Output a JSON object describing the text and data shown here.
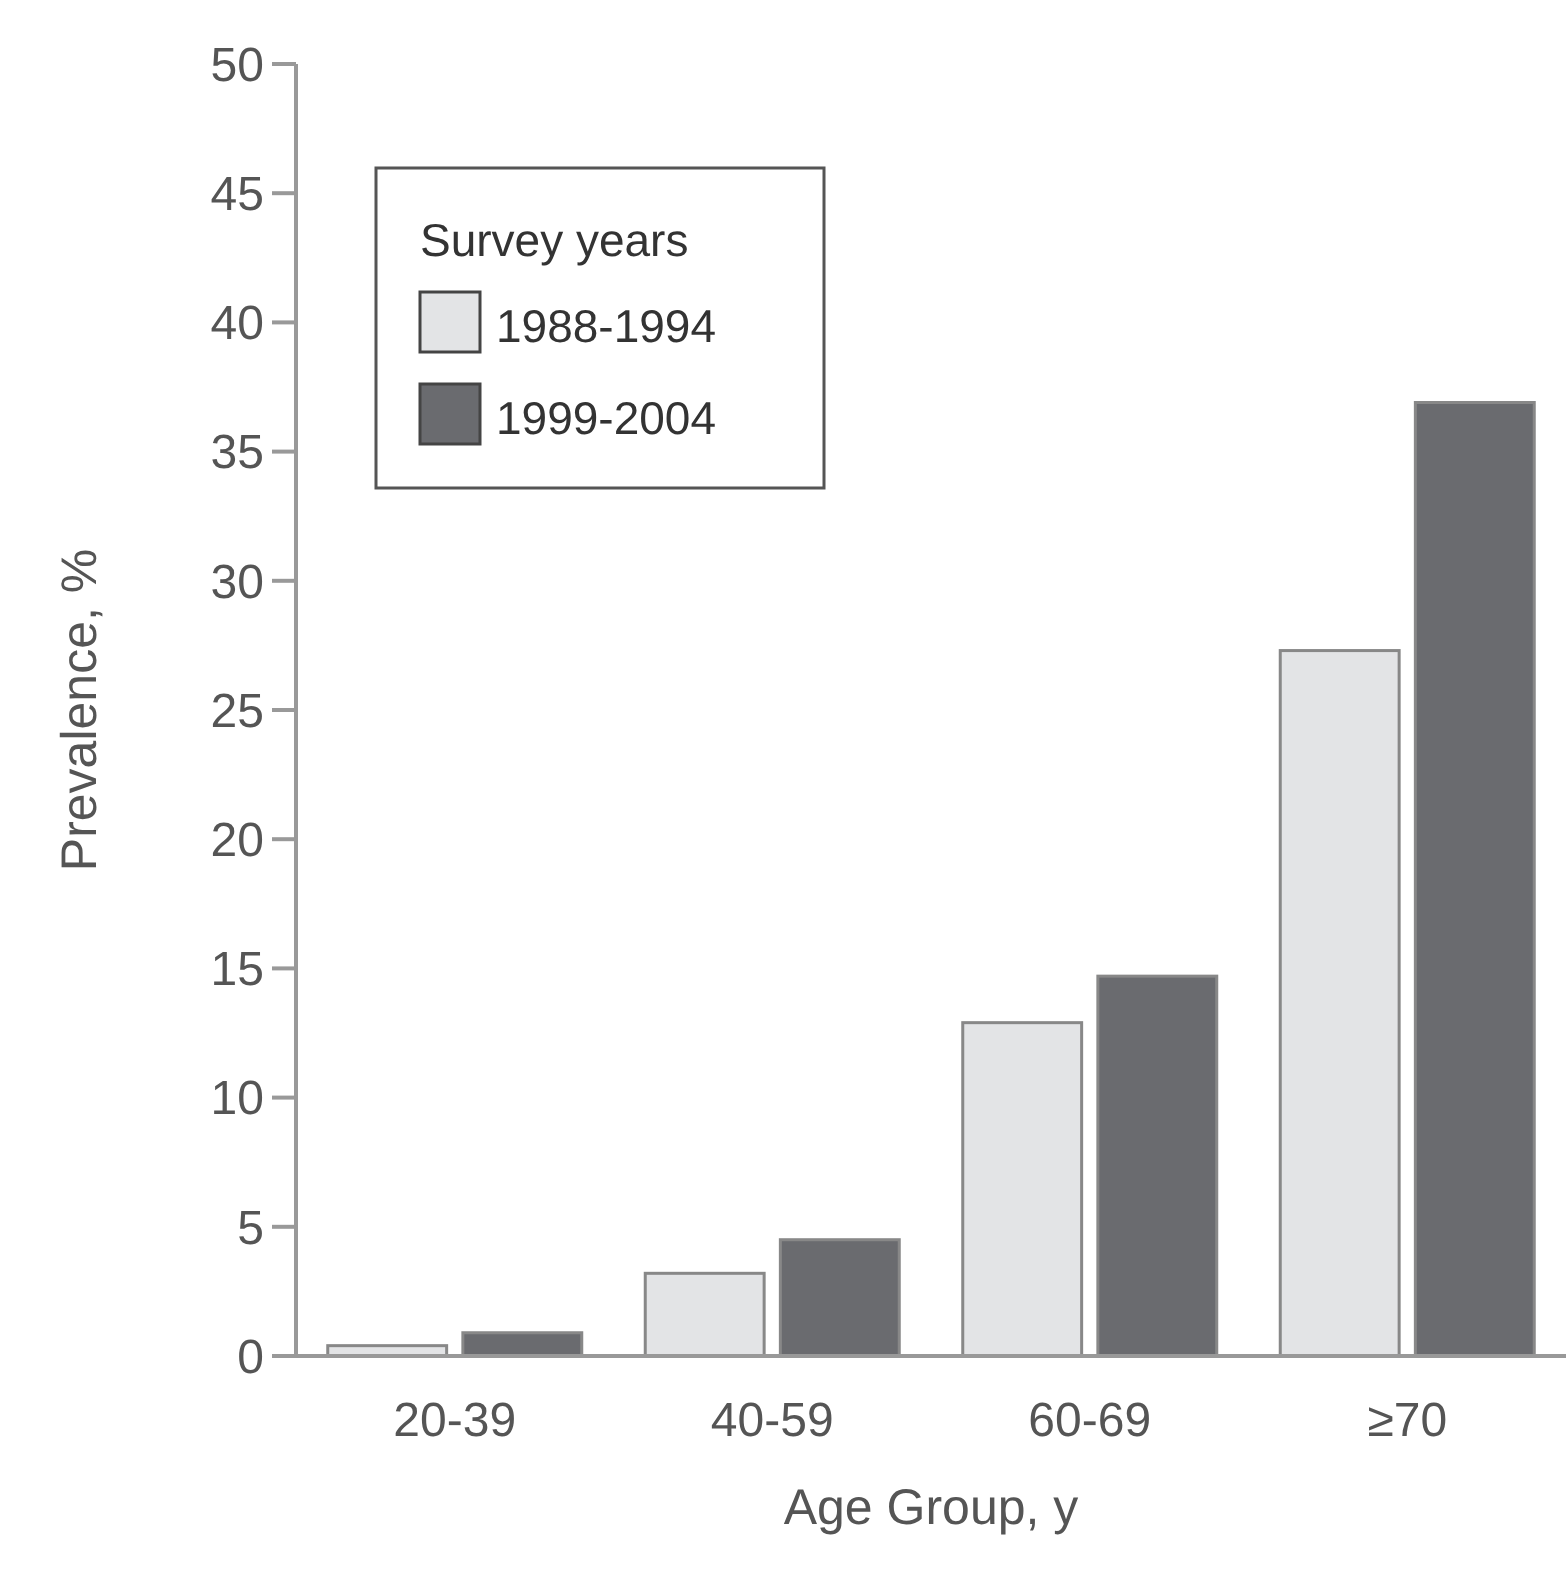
{
  "chart_data": {
    "type": "bar",
    "xlabel": "Age Group, y",
    "ylabel": "Prevalence, %",
    "legend_title": "Survey years",
    "categories": [
      "20-39",
      "40-59",
      "60-69",
      "≥70"
    ],
    "series": [
      {
        "name": "1988-1994",
        "color": "#e3e4e6",
        "values": [
          0.4,
          3.2,
          12.9,
          27.3
        ]
      },
      {
        "name": "1999-2004",
        "color": "#6a6b6f",
        "values": [
          0.9,
          4.5,
          14.7,
          36.9
        ]
      }
    ],
    "ylim": [
      0,
      50
    ],
    "yticks": [
      0,
      5,
      10,
      15,
      20,
      25,
      30,
      35,
      40,
      45,
      50
    ],
    "legend": "top left",
    "grid": false
  }
}
